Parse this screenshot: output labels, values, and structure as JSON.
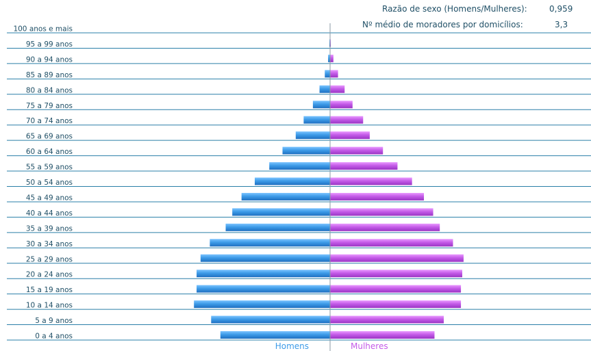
{
  "stats": {
    "sex_ratio_label": "Razão de sexo (Homens/Mulheres):",
    "sex_ratio_value": "0,959",
    "avg_residents_label": "Nº médio de moradores por domicílios:",
    "avg_residents_value": "3,3"
  },
  "colors": {
    "men": "#3d9be8",
    "women": "#c45be8",
    "axis": "#2a7fa8",
    "text": "#1f4f66"
  },
  "chart_data": {
    "type": "bar",
    "orientation": "horizontal",
    "layout": "population-pyramid",
    "categories": [
      "100 anos e mais",
      "95 a 99 anos",
      "90 a 94 anos",
      "85 a 89 anos",
      "80 a 84 anos",
      "75 a 79 anos",
      "70 a 74 anos",
      "65 a 69 anos",
      "60 a 64 anos",
      "55 a 59 anos",
      "50 a 54 anos",
      "45 a 49 anos",
      "40 a 44 anos",
      "35 a 39 anos",
      "30 a 34 anos",
      "25 a 29 anos",
      "20 a 24 anos",
      "15 a 19 anos",
      "10 a 14 anos",
      "5 a 9 anos",
      "0 a 4 anos"
    ],
    "series": [
      {
        "name": "Homens",
        "values": [
          0,
          0.5,
          1.5,
          4,
          8,
          13,
          20,
          26,
          36,
          46,
          57,
          67,
          74,
          79,
          91,
          98,
          101,
          101,
          103,
          90,
          83
        ]
      },
      {
        "name": "Mulheres",
        "values": [
          0,
          0.5,
          2.5,
          6,
          11,
          17,
          25,
          30,
          40,
          51,
          62,
          71,
          78,
          83,
          93,
          101,
          100,
          99,
          99,
          86,
          79
        ]
      }
    ],
    "xlim": [
      0,
      105
    ],
    "legend": {
      "position": "bottom-center"
    }
  }
}
